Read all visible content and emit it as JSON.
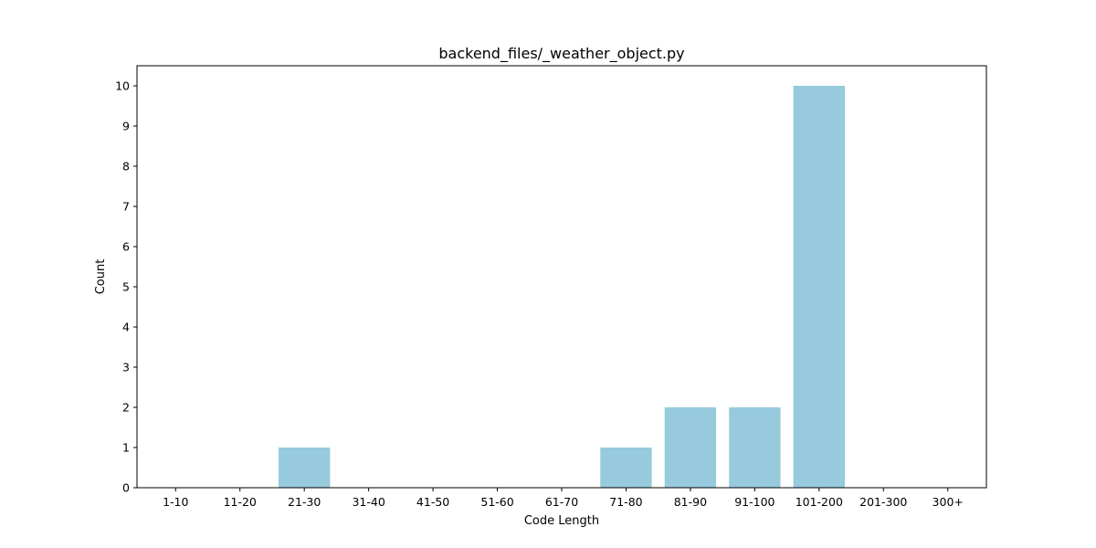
{
  "chart_data": {
    "type": "bar",
    "title": "backend_files/_weather_object.py",
    "xlabel": "Code Length",
    "ylabel": "Count",
    "categories": [
      "1-10",
      "11-20",
      "21-30",
      "31-40",
      "41-50",
      "51-60",
      "61-70",
      "71-80",
      "81-90",
      "91-100",
      "101-200",
      "201-300",
      "300+"
    ],
    "values": [
      0,
      0,
      1,
      0,
      0,
      0,
      0,
      1,
      2,
      2,
      10,
      0,
      0
    ],
    "ylim": [
      0,
      10.5
    ],
    "yticks": [
      0,
      1,
      2,
      3,
      4,
      5,
      6,
      7,
      8,
      9,
      10
    ],
    "bar_color": "#96cadc",
    "grid": false,
    "legend": "none"
  }
}
